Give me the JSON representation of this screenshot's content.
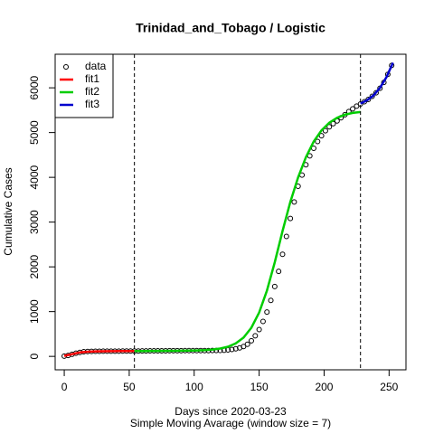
{
  "chart_data": {
    "type": "scatter",
    "title": "Trinidad_and_Tobago / Logistic",
    "x_label": "Days since 2020-03-23",
    "subtitle": "Simple Moving Avarage (window size = 7)",
    "y_label": "Cumulative Cases",
    "xlim": [
      -7,
      263
    ],
    "ylim": [
      -300,
      6750
    ],
    "xticks": [
      0,
      50,
      100,
      150,
      200,
      250
    ],
    "yticks": [
      0,
      1000,
      2000,
      3000,
      4000,
      5000,
      6000
    ],
    "vlines": [
      54,
      228
    ],
    "legend": "top-left",
    "series": [
      {
        "name": "data",
        "color": "#000000",
        "kind": "points",
        "x": [
          0,
          3,
          6,
          9,
          12,
          15,
          18,
          21,
          24,
          27,
          30,
          33,
          36,
          39,
          42,
          45,
          48,
          51,
          54,
          57,
          60,
          63,
          66,
          69,
          72,
          75,
          78,
          81,
          84,
          87,
          90,
          93,
          96,
          99,
          102,
          105,
          108,
          111,
          114,
          117,
          120,
          123,
          126,
          129,
          132,
          135,
          138,
          141,
          144,
          147,
          150,
          153,
          156,
          159,
          162,
          165,
          168,
          171,
          174,
          177,
          180,
          183,
          186,
          189,
          192,
          195,
          198,
          201,
          204,
          207,
          210,
          213,
          216,
          219,
          222,
          225,
          228,
          231,
          234,
          237,
          240,
          243,
          246,
          249,
          252
        ],
        "values": [
          5,
          20,
          45,
          70,
          90,
          105,
          110,
          112,
          114,
          115,
          116,
          116,
          117,
          117,
          117,
          118,
          118,
          118,
          119,
          120,
          121,
          122,
          123,
          123,
          124,
          125,
          125,
          126,
          126,
          127,
          127,
          128,
          128,
          128,
          129,
          129,
          130,
          130,
          131,
          132,
          133,
          137,
          145,
          155,
          170,
          190,
          220,
          270,
          350,
          460,
          600,
          780,
          990,
          1250,
          1560,
          1900,
          2280,
          2680,
          3080,
          3450,
          3800,
          4050,
          4280,
          4480,
          4650,
          4800,
          4930,
          5040,
          5130,
          5200,
          5260,
          5330,
          5400,
          5470,
          5530,
          5590,
          5640,
          5690,
          5740,
          5810,
          5890,
          5990,
          6120,
          6300,
          6500
        ]
      },
      {
        "name": "fit1",
        "color": "#ff0000",
        "kind": "line",
        "x": [
          0,
          6,
          12,
          18,
          24,
          30,
          36,
          42,
          48,
          54
        ],
        "values": [
          10,
          50,
          88,
          105,
          112,
          115,
          117,
          118,
          118,
          118
        ]
      },
      {
        "name": "fit2",
        "color": "#00cd00",
        "kind": "line",
        "x": [
          54,
          60,
          66,
          72,
          78,
          84,
          90,
          96,
          102,
          108,
          114,
          120,
          126,
          132,
          138,
          144,
          150,
          156,
          162,
          168,
          174,
          180,
          186,
          192,
          198,
          204,
          210,
          216,
          222,
          228
        ],
        "values": [
          119,
          120,
          121,
          122,
          124,
          125,
          127,
          129,
          133,
          140,
          152,
          175,
          215,
          290,
          420,
          640,
          980,
          1470,
          2100,
          2800,
          3450,
          4000,
          4450,
          4800,
          5050,
          5220,
          5330,
          5400,
          5440,
          5460
        ]
      },
      {
        "name": "fit3",
        "color": "#0000cd",
        "kind": "line",
        "x": [
          228,
          233,
          238,
          243,
          248,
          253
        ],
        "values": [
          5650,
          5720,
          5830,
          6000,
          6240,
          6560
        ]
      }
    ]
  }
}
